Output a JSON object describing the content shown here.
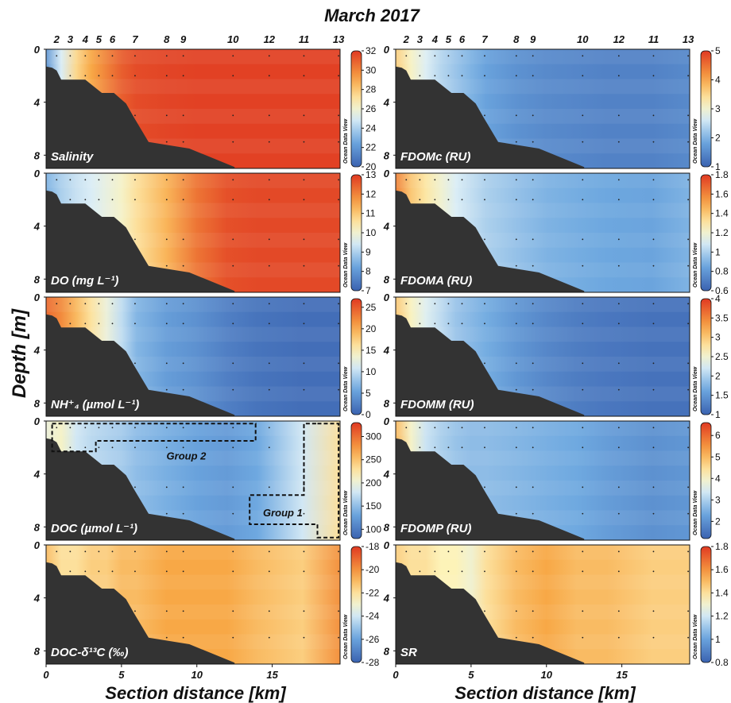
{
  "title": "March 2017",
  "ylabel": "Depth [m]",
  "xlabel": "Section distance [km]",
  "watermark": "Ocean Data View",
  "colors": {
    "low": "#3a62b0",
    "mid": "#fdf3b8",
    "high": "#e03a22",
    "seabed": "#333333"
  },
  "chart_data": {
    "type": "heatmap",
    "x_axis": {
      "label": "Section distance [km]",
      "range": [
        0,
        19.5
      ],
      "ticks": [
        0,
        5,
        10,
        15
      ]
    },
    "y_axis": {
      "label": "Depth [m]",
      "range": [
        9,
        0
      ],
      "ticks": [
        0,
        4,
        8
      ]
    },
    "stations": [
      {
        "name": "2",
        "x": 0.7
      },
      {
        "name": "3",
        "x": 1.6
      },
      {
        "name": "4",
        "x": 2.6
      },
      {
        "name": "5",
        "x": 3.5
      },
      {
        "name": "6",
        "x": 4.4
      },
      {
        "name": "7",
        "x": 5.9
      },
      {
        "name": "8",
        "x": 8.0
      },
      {
        "name": "9",
        "x": 9.1
      },
      {
        "name": "10",
        "x": 12.4
      },
      {
        "name": "12",
        "x": 14.8
      },
      {
        "name": "11",
        "x": 17.1
      },
      {
        "name": "13",
        "x": 19.4
      }
    ],
    "seabed_profile": [
      [
        0,
        1.3
      ],
      [
        0.4,
        1.4
      ],
      [
        0.7,
        1.6
      ],
      [
        1.0,
        2.3
      ],
      [
        2.6,
        2.3
      ],
      [
        3.7,
        3.3
      ],
      [
        4.5,
        3.3
      ],
      [
        5.3,
        4.1
      ],
      [
        5.8,
        5.1
      ],
      [
        6.8,
        7.0
      ],
      [
        9.5,
        7.5
      ],
      [
        12.5,
        8.9
      ]
    ],
    "panels": [
      {
        "id": "salinity",
        "label": "Salinity",
        "column": 0,
        "row": 0,
        "colorbar_ticks": [
          20,
          22,
          24,
          26,
          28,
          30,
          32
        ],
        "range": [
          20,
          32
        ],
        "field": {
          "xs": [
            0,
            1,
            2,
            3,
            4,
            5,
            6,
            8,
            10,
            12,
            14,
            17,
            19.5
          ],
          "values": [
            22,
            25,
            27.5,
            29,
            30,
            31,
            31.5,
            31.7,
            31.8,
            31.8,
            31.8,
            31.8,
            31.8
          ]
        }
      },
      {
        "id": "do",
        "label": "DO (mg L⁻¹)",
        "column": 0,
        "row": 1,
        "colorbar_ticks": [
          7,
          8,
          9,
          10,
          11,
          12,
          13
        ],
        "range": [
          7,
          13
        ],
        "field": {
          "xs": [
            0,
            1,
            2,
            3,
            4,
            5,
            6,
            8,
            10,
            12,
            14,
            17,
            19.5
          ],
          "values": [
            8.5,
            9,
            9.3,
            9.5,
            9.8,
            10.1,
            10.6,
            11.3,
            12.2,
            12.7,
            12.8,
            12.8,
            12.8
          ]
        }
      },
      {
        "id": "nh4",
        "label": "NH⁺₄ (µmol L⁻¹)",
        "column": 0,
        "row": 2,
        "colorbar_ticks": [
          0,
          5,
          10,
          15,
          20,
          25
        ],
        "range": [
          0,
          27
        ],
        "field": {
          "xs": [
            0,
            1,
            2,
            3,
            4,
            5,
            6,
            8,
            10,
            12,
            14,
            17,
            19.5
          ],
          "values": [
            24,
            22,
            19,
            16,
            13,
            10,
            7,
            5,
            4,
            2.5,
            1.5,
            1,
            1
          ]
        }
      },
      {
        "id": "doc",
        "label": "DOC (µmol L⁻¹)",
        "column": 0,
        "row": 3,
        "colorbar_ticks": [
          100,
          150,
          200,
          250,
          300
        ],
        "range": [
          80,
          330
        ],
        "field": {
          "xs": [
            0,
            1,
            2,
            3,
            4,
            5,
            6,
            8,
            10,
            12,
            14,
            17,
            19.5
          ],
          "values": [
            200,
            210,
            180,
            170,
            165,
            160,
            150,
            140,
            130,
            125,
            135,
            180,
            230
          ]
        },
        "annotations": [
          {
            "text": "Group 2"
          },
          {
            "text": "Group 1"
          }
        ]
      },
      {
        "id": "doc_d13c",
        "label": "DOC-δ¹³C (‰)",
        "column": 0,
        "row": 4,
        "colorbar_ticks": [
          -28,
          -26,
          -24,
          -22,
          -20,
          -18
        ],
        "range": [
          -28,
          -18
        ],
        "field": {
          "xs": [
            0,
            1,
            2,
            3,
            4,
            5,
            6,
            8,
            10,
            12,
            14,
            17,
            19.5
          ],
          "values": [
            -21,
            -22,
            -22,
            -21.5,
            -21.5,
            -21,
            -21,
            -20.5,
            -20.5,
            -20.5,
            -21,
            -21.5,
            -20
          ]
        }
      },
      {
        "id": "fdomc",
        "label": "FDOMc (RU)",
        "column": 1,
        "row": 0,
        "colorbar_ticks": [
          1,
          2,
          3,
          4,
          5
        ],
        "range": [
          1,
          5
        ],
        "field": {
          "xs": [
            0,
            1,
            2,
            3,
            4,
            5,
            6,
            8,
            10,
            12,
            14,
            17,
            19.5
          ],
          "values": [
            3.6,
            3.1,
            2.7,
            2.4,
            2.2,
            2,
            1.8,
            1.6,
            1.5,
            1.45,
            1.4,
            1.4,
            1.5
          ]
        }
      },
      {
        "id": "fdoma",
        "label": "FDOMA (RU)",
        "column": 1,
        "row": 1,
        "colorbar_ticks": [
          0.6,
          0.8,
          1,
          1.2,
          1.4,
          1.6,
          1.8
        ],
        "range": [
          0.6,
          1.8
        ],
        "field": {
          "xs": [
            0,
            1,
            2,
            3,
            4,
            5,
            6,
            8,
            10,
            12,
            14,
            17,
            19.5
          ],
          "values": [
            1.6,
            1.4,
            1.3,
            1.2,
            1.1,
            1.05,
            1,
            0.95,
            0.9,
            0.88,
            0.86,
            0.85,
            0.9
          ]
        }
      },
      {
        "id": "fdomm",
        "label": "FDOMM (RU)",
        "column": 1,
        "row": 2,
        "colorbar_ticks": [
          1,
          1.5,
          2,
          2.5,
          3,
          3.5,
          4
        ],
        "range": [
          1,
          4
        ],
        "field": {
          "xs": [
            0,
            1,
            2,
            3,
            4,
            5,
            6,
            8,
            10,
            12,
            14,
            17,
            19.5
          ],
          "values": [
            3,
            2.6,
            2.3,
            2.1,
            1.9,
            1.8,
            1.7,
            1.5,
            1.35,
            1.25,
            1.2,
            1.15,
            1.15
          ]
        }
      },
      {
        "id": "fdomp",
        "label": "FDOMP (RU)",
        "column": 1,
        "row": 3,
        "colorbar_ticks": [
          2,
          3,
          4,
          5,
          6
        ],
        "range": [
          1.2,
          6.6
        ],
        "field": {
          "xs": [
            0,
            1,
            2,
            3,
            4,
            5,
            6,
            8,
            10,
            12,
            14,
            17,
            19.5
          ],
          "values": [
            5,
            4,
            3.3,
            3,
            2.8,
            2.7,
            2.7,
            2.6,
            2.5,
            2.4,
            2.2,
            2,
            2.1
          ]
        }
      },
      {
        "id": "sr",
        "label": "SR",
        "column": 1,
        "row": 4,
        "colorbar_ticks": [
          0.8,
          1,
          1.2,
          1.4,
          1.6,
          1.8
        ],
        "range": [
          0.8,
          1.8
        ],
        "field": {
          "xs": [
            0,
            1,
            2,
            3,
            4,
            5,
            6,
            8,
            10,
            12,
            14,
            17,
            19.5
          ],
          "values": [
            1.45,
            1.4,
            1.4,
            1.35,
            1.35,
            1.3,
            1.4,
            1.5,
            1.55,
            1.5,
            1.5,
            1.45,
            1.45
          ]
        }
      }
    ]
  }
}
